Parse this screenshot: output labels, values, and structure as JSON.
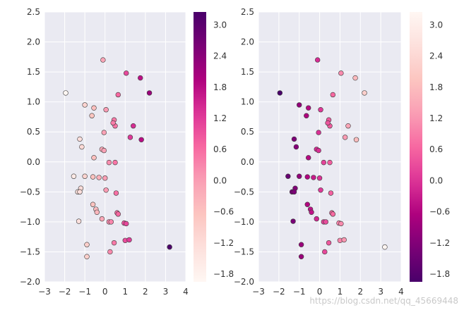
{
  "chart_data": [
    {
      "type": "scatter",
      "colormap": "RdPu",
      "colormap_reversed": false,
      "xlim": [
        -3,
        4
      ],
      "ylim": [
        -2.0,
        2.5
      ],
      "xticks": [
        "−3",
        "−2",
        "−1",
        "0",
        "1",
        "2",
        "3",
        "4"
      ],
      "yticks": [
        "−2.0",
        "−1.5",
        "−1.0",
        "−0.5",
        "0.0",
        "0.5",
        "1.0",
        "1.5",
        "2.0",
        "2.5"
      ],
      "colorbar_ticks": [
        "−1.8",
        "−1.2",
        "−0.6",
        "0.0",
        "0.6",
        "1.2",
        "1.8",
        "2.4",
        "3.0"
      ],
      "colorbar_range": [
        -1.95,
        3.25
      ],
      "color_value": "x",
      "x": [
        -1.95,
        1.05,
        -0.1,
        1.75,
        2.2,
        0.65,
        -1.0,
        0.05,
        -0.55,
        -0.65,
        0.45,
        1.4,
        0.5,
        -0.15,
        -0.55,
        -0.05,
        -1.25,
        -0.05,
        0.2,
        -1.15,
        1.8,
        -1.2,
        0.5,
        0.4,
        0.95,
        -1.3,
        -1.35,
        -0.3,
        1.25,
        -1.0,
        -0.6,
        -0.45,
        -0.4,
        0.6,
        0.2,
        0.3,
        1.0,
        0.45,
        1.2,
        3.2,
        -0.9,
        0.25,
        0.05,
        -1.55,
        0.55,
        -0.6,
        0.0,
        0.65,
        -1.25,
        -0.15,
        1.05,
        -0.9
      ],
      "y": [
        1.15,
        1.48,
        1.7,
        1.4,
        1.15,
        1.12,
        0.95,
        0.87,
        0.9,
        0.77,
        0.7,
        0.6,
        0.6,
        0.21,
        0.07,
        0.19,
        0.38,
        0.49,
        -0.01,
        0.25,
        0.37,
        -0.44,
        -0.01,
        0.65,
        -1.02,
        -0.99,
        -0.5,
        -0.26,
        0.41,
        -0.24,
        -0.71,
        -0.79,
        -0.84,
        -0.85,
        -1.0,
        -1.0,
        -1.31,
        -1.35,
        -1.3,
        -1.42,
        -1.38,
        -1.5,
        -0.47,
        -0.24,
        -0.52,
        -0.25,
        -0.27,
        -0.87,
        -0.5,
        -0.95,
        -1.03,
        -1.58
      ]
    },
    {
      "type": "scatter",
      "colormap": "RdPu",
      "colormap_reversed": true,
      "xlim": [
        -3,
        4
      ],
      "ylim": [
        -2.0,
        2.5
      ],
      "xticks": [
        "−3",
        "−2",
        "−1",
        "0",
        "1",
        "2",
        "3",
        "4"
      ],
      "yticks": [
        "−2.0",
        "−1.5",
        "−1.0",
        "−0.5",
        "0.0",
        "0.5",
        "1.0",
        "1.5",
        "2.0",
        "2.5"
      ],
      "colorbar_ticks": [
        "−1.8",
        "−1.2",
        "−0.6",
        "0.0",
        "0.6",
        "1.2",
        "1.8",
        "2.4",
        "3.0"
      ],
      "colorbar_range": [
        -1.95,
        3.25
      ],
      "color_value": "x",
      "x": [
        -1.95,
        1.05,
        -0.1,
        1.75,
        2.2,
        0.65,
        -1.0,
        0.05,
        -0.55,
        -0.65,
        0.45,
        1.4,
        0.5,
        -0.15,
        -0.55,
        -0.05,
        -1.25,
        -0.05,
        0.2,
        -1.15,
        1.8,
        -1.2,
        0.5,
        0.4,
        0.95,
        -1.3,
        -1.35,
        -0.3,
        1.25,
        -1.0,
        -0.6,
        -0.45,
        -0.4,
        0.6,
        0.2,
        0.3,
        1.0,
        0.45,
        1.2,
        3.2,
        -0.9,
        0.25,
        0.05,
        -1.55,
        0.55,
        -0.6,
        0.0,
        0.65,
        -1.25,
        -0.15,
        1.05,
        -0.9
      ],
      "y": [
        1.15,
        1.48,
        1.7,
        1.4,
        1.15,
        1.12,
        0.95,
        0.87,
        0.9,
        0.77,
        0.7,
        0.6,
        0.6,
        0.21,
        0.07,
        0.19,
        0.38,
        0.49,
        -0.01,
        0.25,
        0.37,
        -0.44,
        -0.01,
        0.65,
        -1.02,
        -0.99,
        -0.5,
        -0.26,
        0.41,
        -0.24,
        -0.71,
        -0.79,
        -0.84,
        -0.85,
        -1.0,
        -1.0,
        -1.31,
        -1.35,
        -1.3,
        -1.42,
        -1.38,
        -1.5,
        -0.47,
        -0.24,
        -0.52,
        -0.25,
        -0.27,
        -0.87,
        -0.5,
        -0.95,
        -1.03,
        -1.58
      ]
    }
  ],
  "style": {
    "axes_background": "#eaeaf2",
    "grid_color": "#ffffff",
    "grid": true,
    "colormap_stops": [
      "#fff7f3",
      "#fde0dd",
      "#fcc5c0",
      "#fa9fb5",
      "#f768a1",
      "#dd3497",
      "#ae017e",
      "#7a0177",
      "#49006a"
    ]
  },
  "watermark": "https://blog.csdn.net/qq_45669448"
}
